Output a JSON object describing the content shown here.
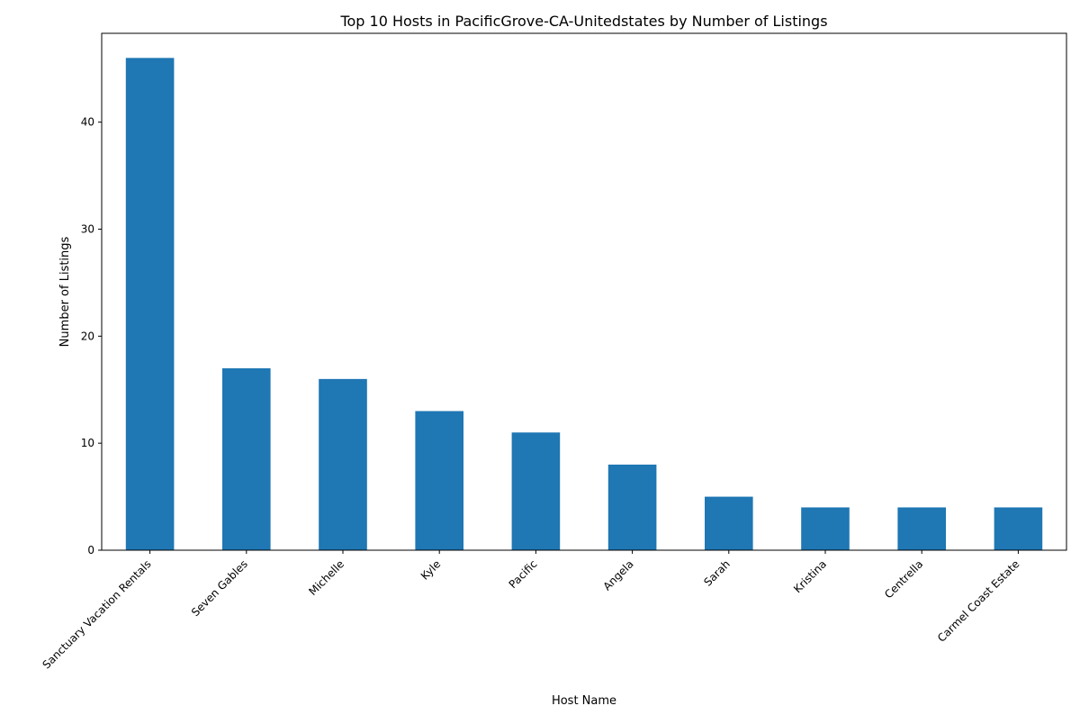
{
  "chart_data": {
    "type": "bar",
    "title": "Top 10 Hosts in PacificGrove-CA-Unitedstates by Number of Listings",
    "xlabel": "Host Name",
    "ylabel": "Number of Listings",
    "categories": [
      "Sanctuary Vacation Rentals",
      "Seven Gables",
      "Michelle",
      "Kyle",
      "Pacific",
      "Angela",
      "Sarah",
      "Kristina",
      "Centrella",
      "Carmel Coast Estate"
    ],
    "values": [
      46,
      17,
      16,
      13,
      11,
      8,
      5,
      4,
      4,
      4
    ],
    "ylim": [
      0,
      48.3
    ],
    "yticks": [
      0,
      10,
      20,
      30,
      40
    ],
    "grid": false,
    "legend": "none",
    "bar_color": "#1f77b4"
  }
}
